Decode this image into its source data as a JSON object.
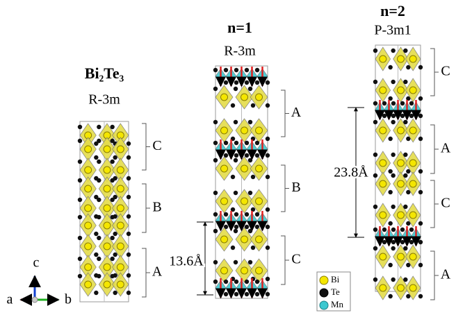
{
  "panels": [
    {
      "title": "Bi₂Te₃",
      "space_group": "R-3m",
      "blocks": [
        "C",
        "B",
        "A"
      ]
    },
    {
      "title": "n=1",
      "space_group": "R-3m",
      "blocks": [
        "A",
        "B",
        "C"
      ],
      "spacing": "13.6Å"
    },
    {
      "title": "n=2",
      "space_group": "P-3m1",
      "blocks": [
        "C",
        "A",
        "C",
        "A"
      ],
      "spacing": "23.8Å"
    }
  ],
  "legend": [
    "Bi",
    "Te",
    "Mn"
  ],
  "axes": [
    "a",
    "b",
    "c"
  ]
}
